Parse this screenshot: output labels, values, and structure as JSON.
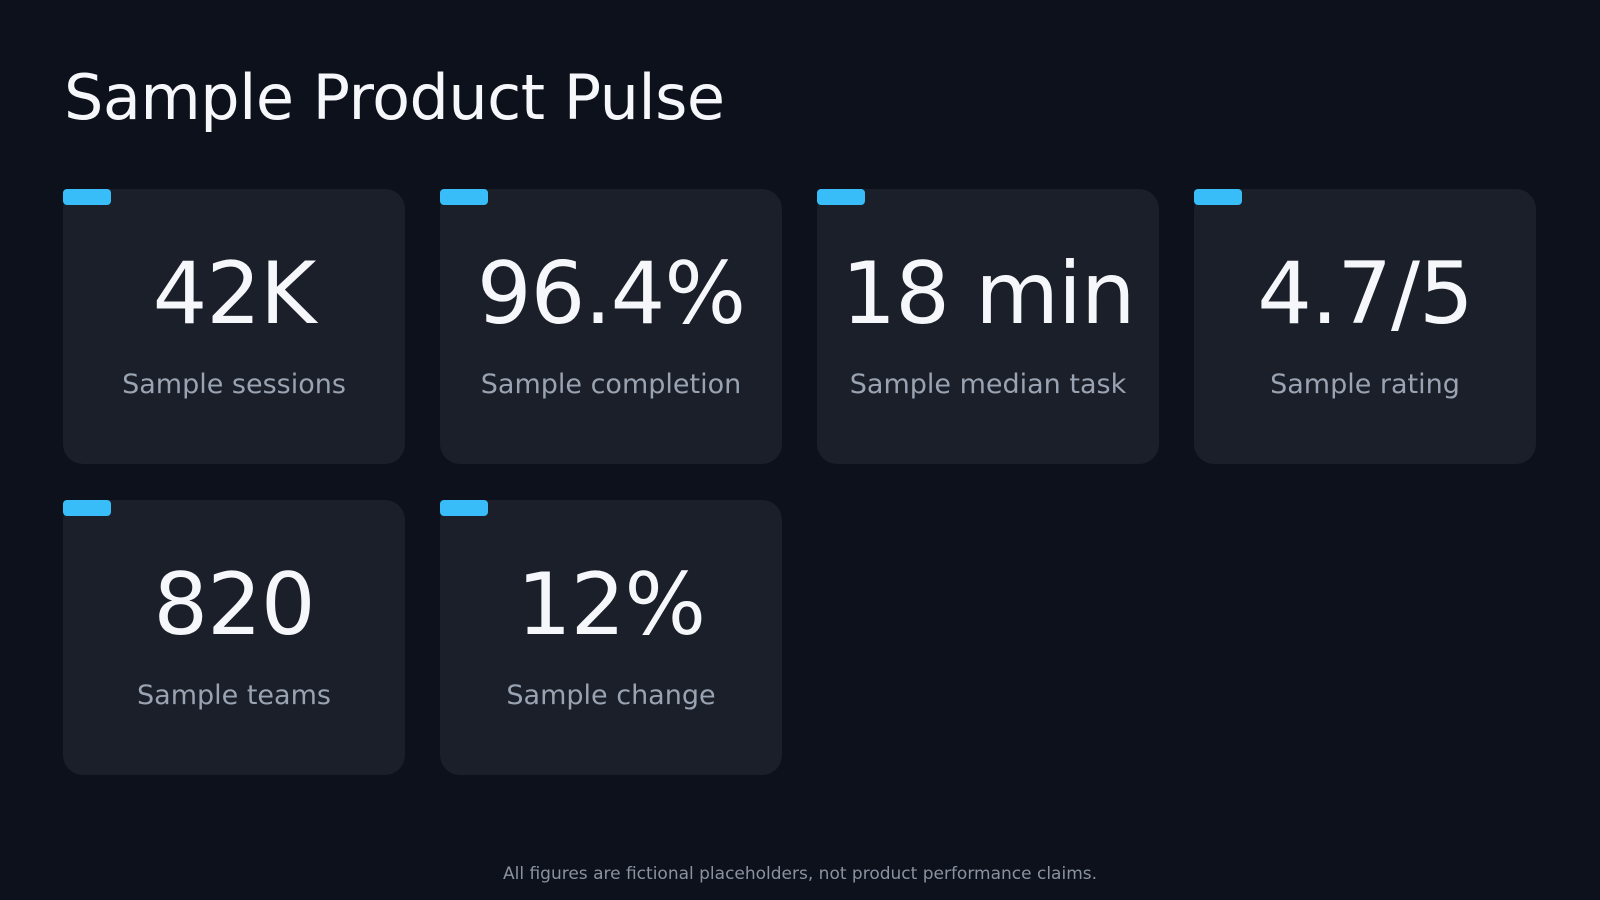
{
  "header": {
    "title": "Sample Product Pulse"
  },
  "cards": [
    {
      "value": "42K",
      "label": "Sample sessions"
    },
    {
      "value": "96.4%",
      "label": "Sample completion"
    },
    {
      "value": "18 min",
      "label": "Sample median task"
    },
    {
      "value": "4.7/5",
      "label": "Sample rating"
    },
    {
      "value": "820",
      "label": "Sample teams"
    },
    {
      "value": "12%",
      "label": "Sample change"
    }
  ],
  "footer": {
    "note": "All figures are fictional placeholders, not product performance claims."
  }
}
